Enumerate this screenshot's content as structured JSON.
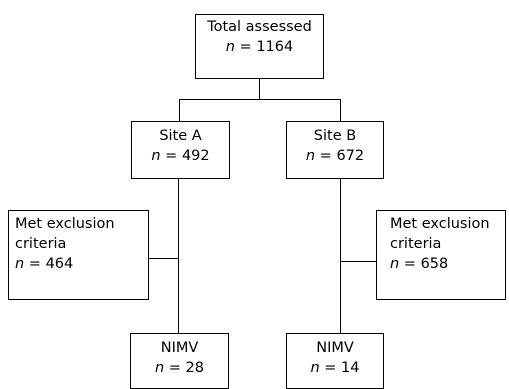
{
  "nodes": {
    "total": {
      "label": "Total assessed",
      "n_symbol": "n",
      "n_text": " = 1164"
    },
    "site_a": {
      "label": "Site A",
      "n_symbol": "n",
      "n_text": " = 492"
    },
    "site_b": {
      "label": "Site B",
      "n_symbol": "n",
      "n_text": " = 672"
    },
    "excl_a": {
      "label_line1": "Met exclusion",
      "label_line2": "criteria",
      "n_symbol": "n",
      "n_text": " = 464"
    },
    "excl_b": {
      "label_line1": "Met exclusion",
      "label_line2": "criteria",
      "n_symbol": "n",
      "n_text": " = 658"
    },
    "nimv_a": {
      "label": "NIMV",
      "n_symbol": "n",
      "n_text": " = 28"
    },
    "nimv_b": {
      "label": "NIMV",
      "n_symbol": "n",
      "n_text": " = 14"
    }
  },
  "colors": {
    "line": "#000000",
    "box_border": "#000000",
    "background": "#ffffff"
  }
}
